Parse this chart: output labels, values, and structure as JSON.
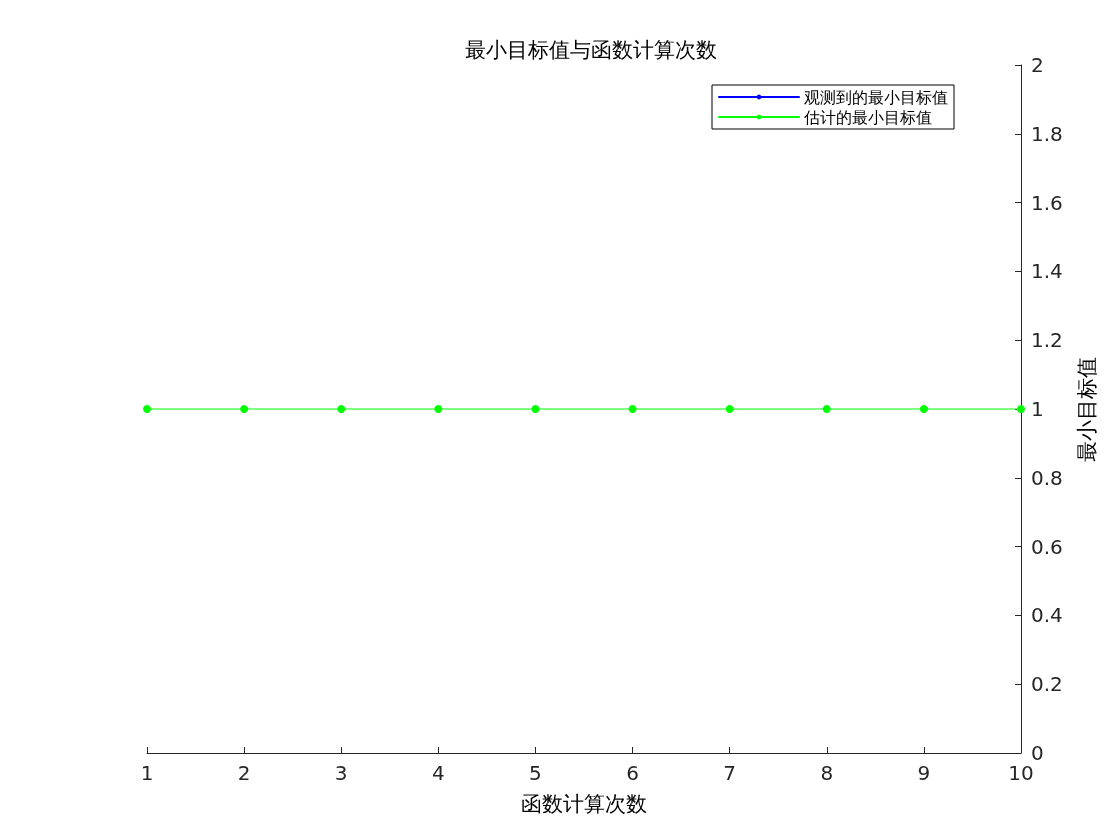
{
  "chart_data": {
    "type": "line",
    "title": "最小目标值与函数计算次数",
    "xlabel": "函数计算次数",
    "ylabel": "最小目标值",
    "x": [
      1,
      2,
      3,
      4,
      5,
      6,
      7,
      8,
      9,
      10
    ],
    "series": [
      {
        "name": "观测到的最小目标值",
        "color": "#0000ff",
        "values": [
          null,
          null,
          null,
          null,
          null,
          null,
          null,
          null,
          null,
          null
        ]
      },
      {
        "name": "估计的最小目标值",
        "color": "#00ff00",
        "values": [
          1,
          1,
          1,
          1,
          1,
          1,
          1,
          1,
          1,
          1
        ]
      }
    ],
    "xlim": [
      1,
      10
    ],
    "xticks": [
      1,
      2,
      3,
      4,
      5,
      6,
      7,
      8,
      9,
      10
    ],
    "ylim": [
      0,
      2
    ],
    "yticks": [
      0,
      0.2,
      0.4,
      0.6,
      0.8,
      1,
      1.2,
      1.4,
      1.6,
      1.8,
      2
    ],
    "grid": false,
    "legend": "top right",
    "marker": "circle",
    "line_style": "solid"
  }
}
